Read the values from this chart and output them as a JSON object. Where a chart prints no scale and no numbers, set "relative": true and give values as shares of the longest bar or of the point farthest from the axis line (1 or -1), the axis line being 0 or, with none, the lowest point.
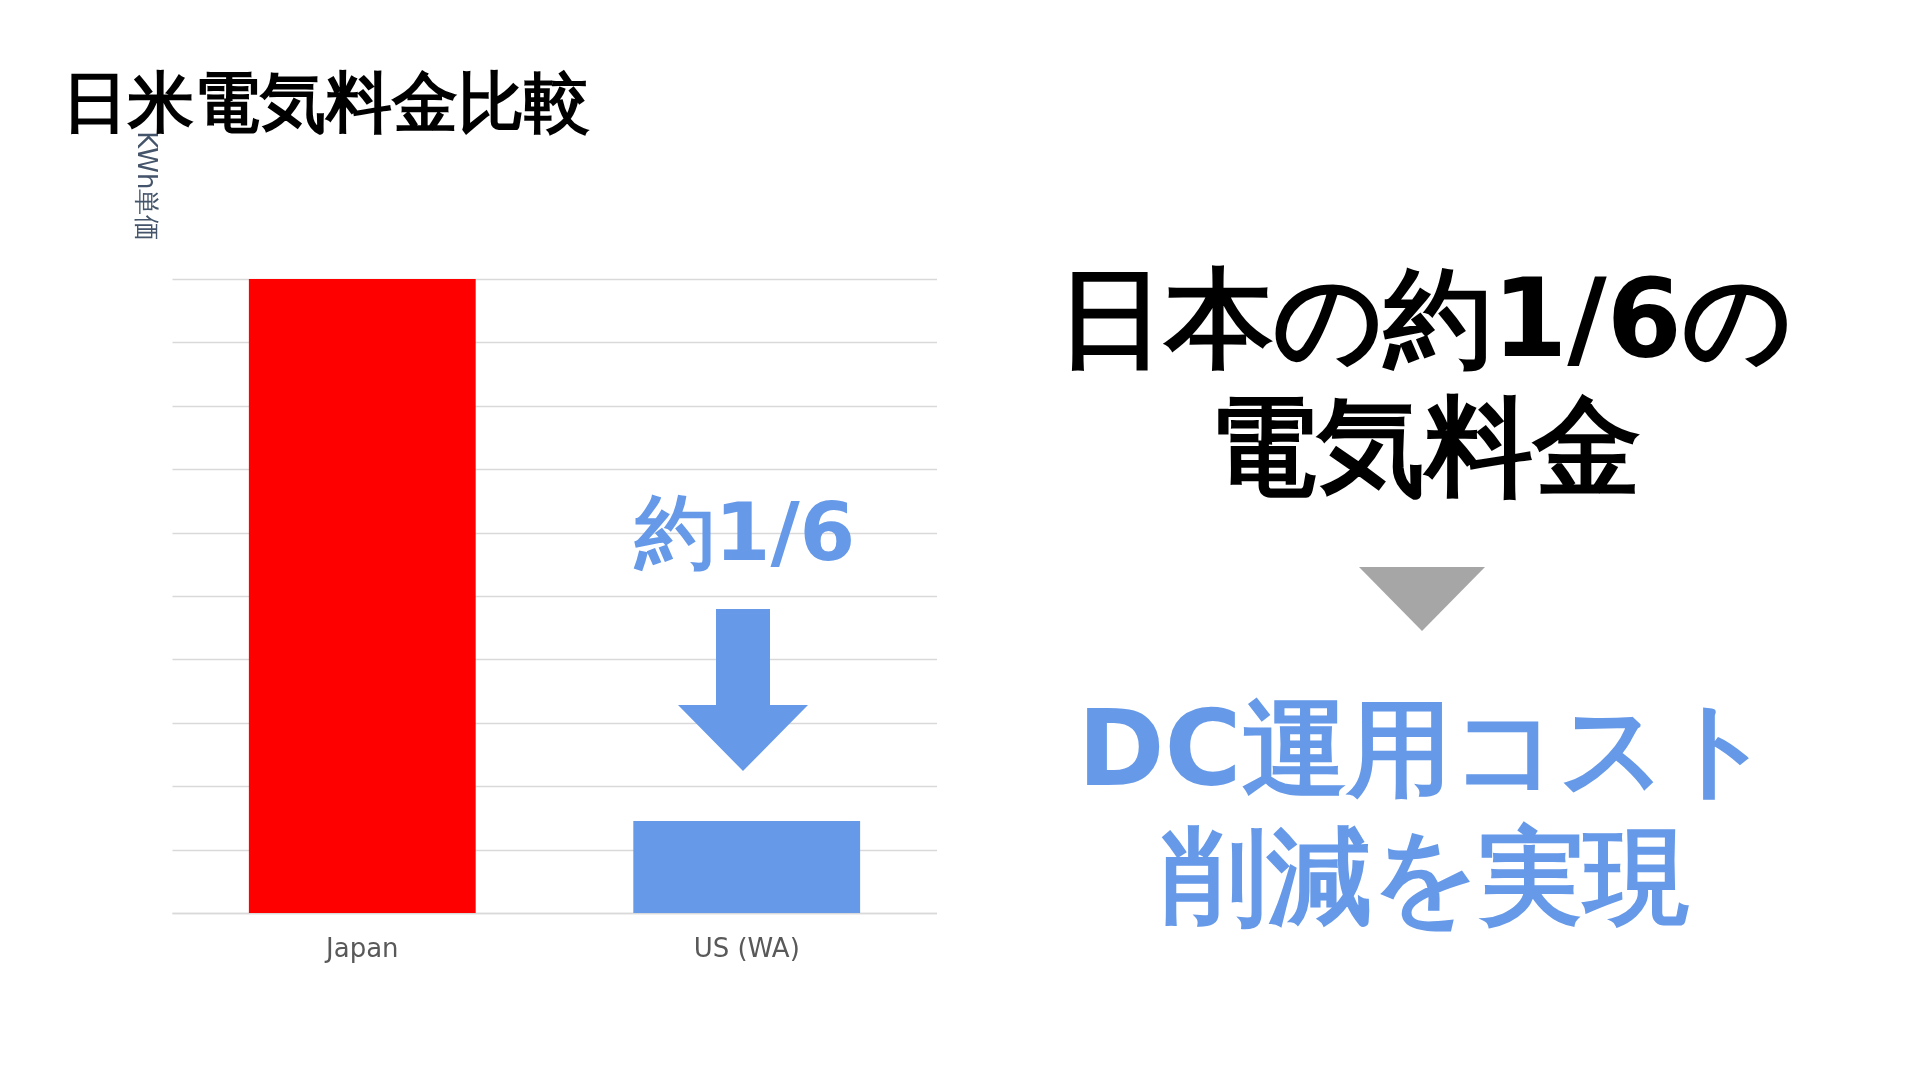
{
  "chart_data": {
    "type": "bar",
    "title": "日米電気料金比較",
    "ylabel": "KWh単価",
    "categories": [
      "Japan",
      "US (WA)"
    ],
    "values": [
      1,
      0.145
    ],
    "colors": [
      "#ff0000",
      "#6699e8"
    ],
    "relative": true,
    "grid": true,
    "annotations": [
      "約1/6",
      "日本の約1/6の電気料金",
      "DC運用コスト削減を実現"
    ]
  }
}
